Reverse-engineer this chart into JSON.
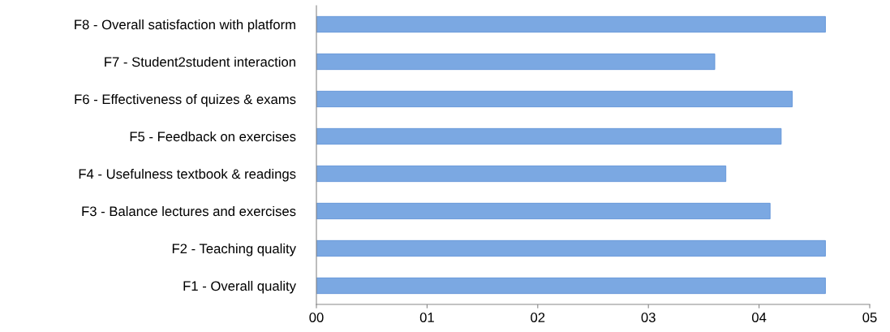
{
  "chart_data": {
    "type": "bar",
    "orientation": "horizontal",
    "categories": [
      "F8 - Overall satisfaction with platform",
      "F7 - Student2student interaction",
      "F6 - Effectiveness of quizes & exams",
      "F5 - Feedback on exercises",
      "F4 - Usefulness textbook & readings",
      "F3 - Balance lectures and exercises",
      "F2 - Teaching quality",
      "F1 - Overall quality"
    ],
    "values": [
      4.6,
      3.6,
      4.3,
      4.2,
      3.7,
      4.1,
      4.6,
      4.6
    ],
    "color": "#7ba8e2",
    "xlim": [
      0,
      5
    ],
    "xticks": [
      {
        "value": 0,
        "label": "00"
      },
      {
        "value": 1,
        "label": "01"
      },
      {
        "value": 2,
        "label": "02"
      },
      {
        "value": 3,
        "label": "03"
      },
      {
        "value": 4,
        "label": "04"
      },
      {
        "value": 5,
        "label": "05"
      }
    ],
    "grid": false,
    "legend": false
  }
}
